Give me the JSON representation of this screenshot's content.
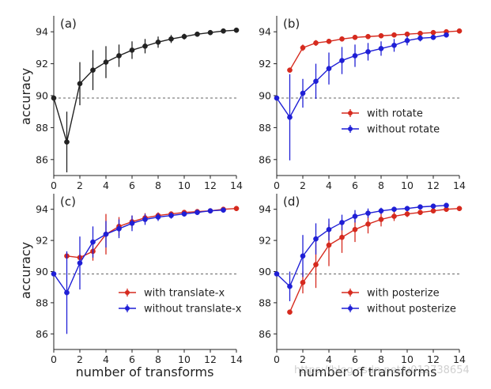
{
  "figure": {
    "ylabel": "accuracy",
    "xlabel": "number of transforms",
    "watermark": "https://blog.csdn.net/u012738654"
  },
  "colors": {
    "black": "#222222",
    "red": "#d62a1e",
    "blue": "#1f1fd6",
    "dashed": "#666666"
  },
  "chart_data": [
    {
      "type": "line",
      "panel": "(a)",
      "xlim": [
        0,
        14
      ],
      "ylim": [
        85,
        95
      ],
      "xticks": [
        0,
        2,
        4,
        6,
        8,
        10,
        12,
        14
      ],
      "yticks": [
        86,
        88,
        90,
        92,
        94
      ],
      "reference_line": 89.85,
      "legend": "none",
      "series": [
        {
          "color": "black",
          "x": [
            0,
            1,
            2,
            3,
            4,
            5,
            6,
            7,
            8,
            9,
            10,
            11,
            12,
            13,
            14
          ],
          "y": [
            89.85,
            87.1,
            90.75,
            91.6,
            92.1,
            92.5,
            92.85,
            93.1,
            93.35,
            93.55,
            93.7,
            93.85,
            93.95,
            94.05,
            94.1
          ],
          "err": [
            0,
            1.9,
            1.35,
            1.25,
            1.0,
            0.7,
            0.55,
            0.45,
            0.35,
            0.25,
            0.18,
            0.12,
            0.08,
            0.05,
            0.03
          ]
        }
      ]
    },
    {
      "type": "line",
      "panel": "(b)",
      "xlim": [
        0,
        14
      ],
      "ylim": [
        85,
        95
      ],
      "xticks": [
        0,
        2,
        4,
        6,
        8,
        10,
        12,
        14
      ],
      "yticks": [
        86,
        88,
        90,
        92,
        94
      ],
      "reference_line": 89.85,
      "legend": "center-right",
      "series": [
        {
          "name": "with rotate",
          "color": "red",
          "x": [
            1,
            2,
            3,
            4,
            5,
            6,
            7,
            8,
            9,
            10,
            11,
            12,
            13,
            14
          ],
          "y": [
            91.6,
            93.0,
            93.3,
            93.4,
            93.55,
            93.65,
            93.7,
            93.75,
            93.8,
            93.85,
            93.9,
            93.95,
            94.0,
            94.05
          ],
          "err": [
            0,
            0.2,
            0.18,
            0.15,
            0.12,
            0.1,
            0.1,
            0.08,
            0.07,
            0.06,
            0.05,
            0.04,
            0.03,
            0.02
          ]
        },
        {
          "name": "without rotate",
          "color": "blue",
          "x": [
            0,
            1,
            2,
            3,
            4,
            5,
            6,
            7,
            8,
            9,
            10,
            11,
            12,
            13
          ],
          "y": [
            89.85,
            88.65,
            90.15,
            90.9,
            91.7,
            92.2,
            92.5,
            92.75,
            92.95,
            93.15,
            93.45,
            93.6,
            93.65,
            93.8
          ],
          "err": [
            0,
            2.7,
            0.9,
            1.1,
            1.0,
            0.85,
            0.7,
            0.55,
            0.45,
            0.4,
            0.3,
            0.2,
            0.15,
            0.1
          ]
        }
      ]
    },
    {
      "type": "line",
      "panel": "(c)",
      "xlim": [
        0,
        14
      ],
      "ylim": [
        85,
        95
      ],
      "xticks": [
        0,
        2,
        4,
        6,
        8,
        10,
        12,
        14
      ],
      "yticks": [
        86,
        88,
        90,
        92,
        94
      ],
      "reference_line": 89.85,
      "legend": "lower-right",
      "series": [
        {
          "name": "with translate-x",
          "color": "red",
          "x": [
            1,
            2,
            3,
            4,
            5,
            6,
            7,
            8,
            9,
            10,
            11,
            12,
            13,
            14
          ],
          "y": [
            91.0,
            90.9,
            91.3,
            92.4,
            92.9,
            93.2,
            93.45,
            93.6,
            93.7,
            93.8,
            93.85,
            93.9,
            94.0,
            94.05
          ],
          "err": [
            0,
            0.25,
            0.6,
            1.3,
            0.6,
            0.4,
            0.3,
            0.2,
            0.15,
            0.12,
            0.1,
            0.08,
            0.05,
            0.03
          ]
        },
        {
          "name": "without translate-x",
          "color": "blue",
          "x": [
            0,
            1,
            2,
            3,
            4,
            5,
            6,
            7,
            8,
            9,
            10,
            11,
            12,
            13
          ],
          "y": [
            89.85,
            88.65,
            90.55,
            91.9,
            92.4,
            92.75,
            93.1,
            93.35,
            93.5,
            93.6,
            93.7,
            93.8,
            93.9,
            93.95
          ],
          "err": [
            0,
            2.65,
            1.7,
            1.0,
            0.85,
            0.6,
            0.5,
            0.35,
            0.25,
            0.2,
            0.15,
            0.1,
            0.08,
            0.05
          ]
        }
      ]
    },
    {
      "type": "line",
      "panel": "(d)",
      "xlim": [
        0,
        14
      ],
      "ylim": [
        85,
        95
      ],
      "xticks": [
        0,
        2,
        4,
        6,
        8,
        10,
        12,
        14
      ],
      "yticks": [
        86,
        88,
        90,
        92,
        94
      ],
      "reference_line": 89.85,
      "legend": "lower-right",
      "series": [
        {
          "name": "with posterize",
          "color": "red",
          "x": [
            1,
            2,
            3,
            4,
            5,
            6,
            7,
            8,
            9,
            10,
            11,
            12,
            13,
            14
          ],
          "y": [
            87.4,
            89.3,
            90.45,
            91.7,
            92.2,
            92.7,
            93.05,
            93.35,
            93.55,
            93.7,
            93.8,
            93.9,
            94.0,
            94.05
          ],
          "err": [
            0,
            0.7,
            1.5,
            1.35,
            1.0,
            0.8,
            0.6,
            0.45,
            0.3,
            0.2,
            0.15,
            0.1,
            0.06,
            0.03
          ]
        },
        {
          "name": "without posterize",
          "color": "blue",
          "x": [
            0,
            1,
            2,
            3,
            4,
            5,
            6,
            7,
            8,
            9,
            10,
            11,
            12,
            13
          ],
          "y": [
            89.85,
            89.05,
            91.0,
            92.1,
            92.7,
            93.15,
            93.55,
            93.75,
            93.9,
            94.0,
            94.05,
            94.15,
            94.2,
            94.25
          ],
          "err": [
            0,
            0.95,
            1.35,
            1.0,
            0.7,
            0.5,
            0.4,
            0.3,
            0.2,
            0.15,
            0.12,
            0.1,
            0.08,
            0.05
          ]
        }
      ]
    }
  ]
}
